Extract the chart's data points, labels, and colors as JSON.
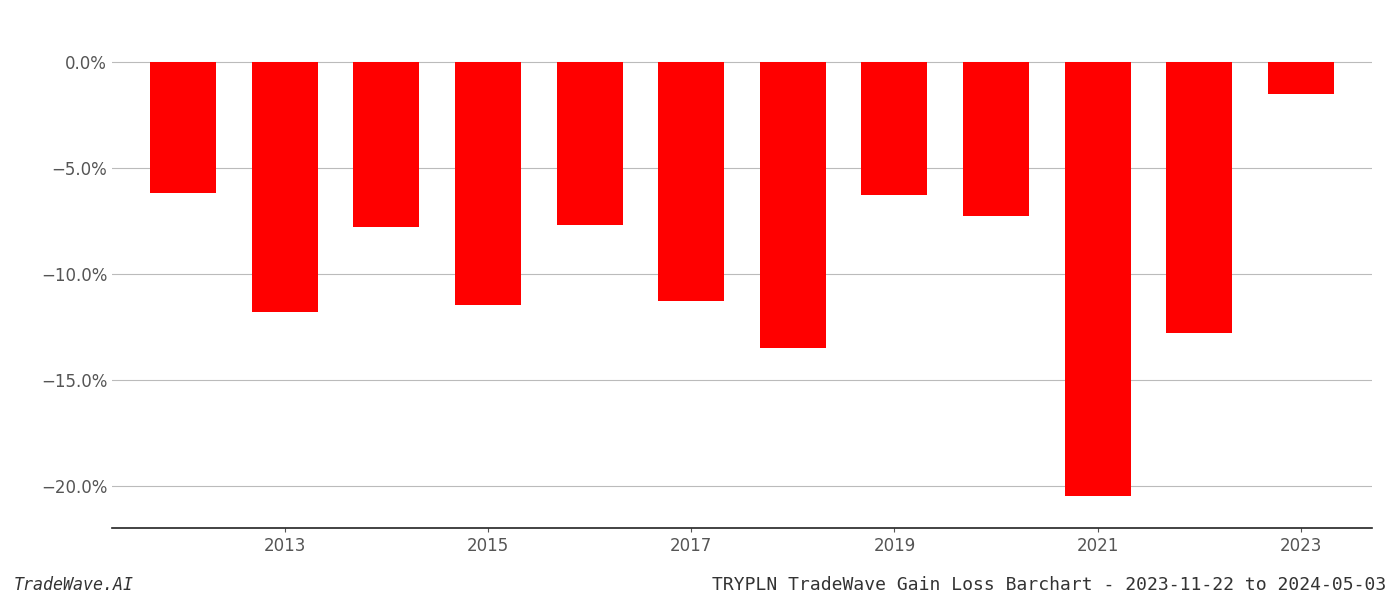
{
  "years": [
    2012,
    2013,
    2014,
    2015,
    2016,
    2017,
    2018,
    2019,
    2020,
    2021,
    2022,
    2023
  ],
  "values": [
    -6.2,
    -11.8,
    -7.8,
    -11.5,
    -7.7,
    -11.3,
    -13.5,
    -6.3,
    -7.3,
    -20.5,
    -12.8,
    -1.5
  ],
  "bar_color": "#ff0000",
  "background_color": "#ffffff",
  "ylim": [
    -22,
    1.5
  ],
  "yticks": [
    0.0,
    -5.0,
    -10.0,
    -15.0,
    -20.0
  ],
  "ytick_labels": [
    "0.0%",
    "−5.0%",
    "−10.0%",
    "−15.0%",
    "−20.0%"
  ],
  "grid_color": "#bbbbbb",
  "title": "TRYPLN TradeWave Gain Loss Barchart - 2023-11-22 to 2024-05-03",
  "watermark": "TradeWave.AI",
  "title_fontsize": 13,
  "tick_fontsize": 12,
  "watermark_fontsize": 12,
  "bar_width": 0.65
}
